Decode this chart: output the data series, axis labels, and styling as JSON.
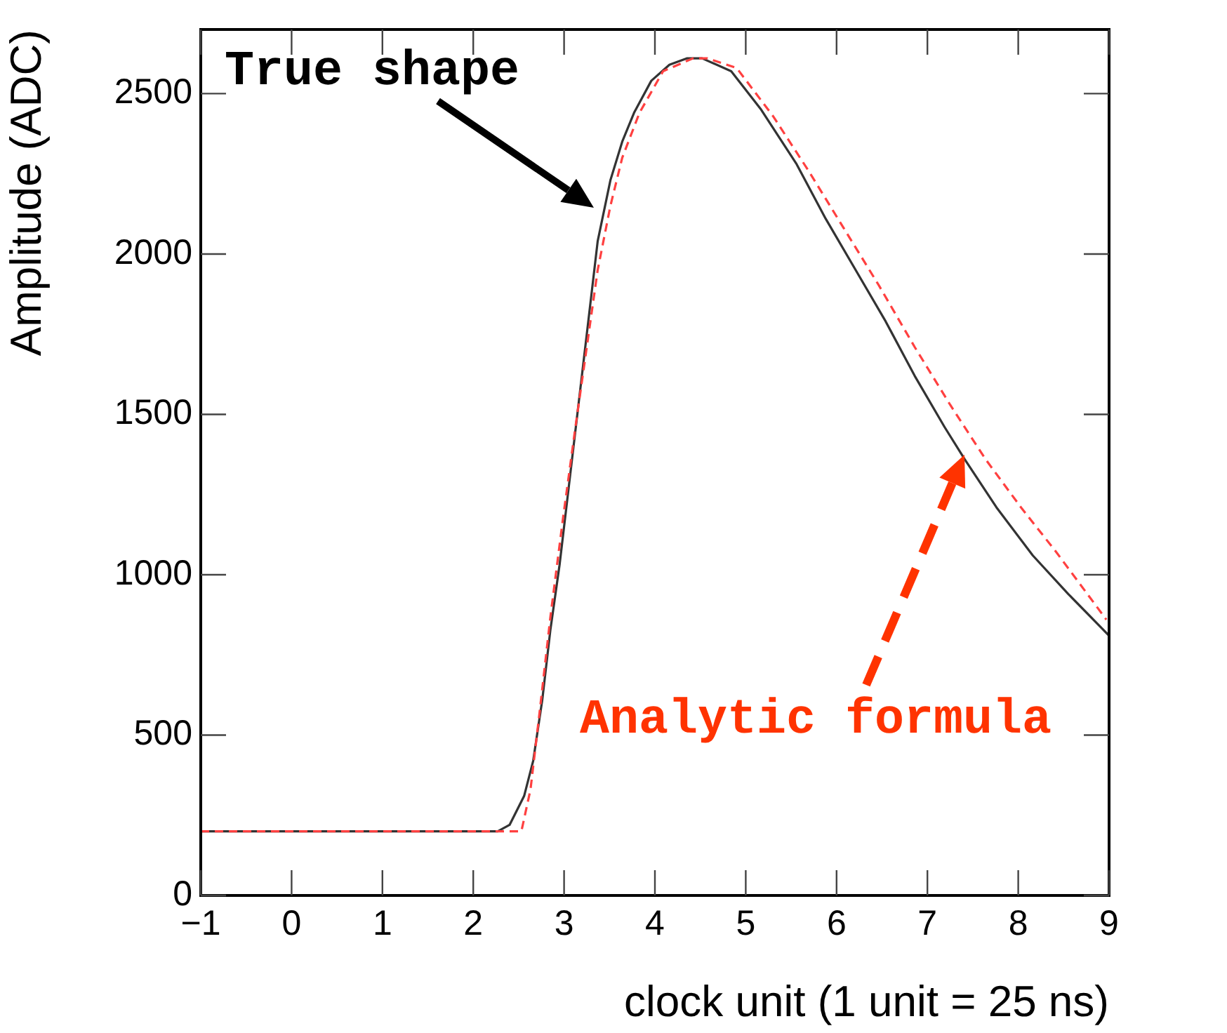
{
  "chart_data": {
    "type": "line",
    "xlabel": "clock unit (1 unit = 25 ns)",
    "ylabel": "Amplitude (ADC)",
    "xlim": [
      -1,
      9
    ],
    "ylim": [
      0,
      2700
    ],
    "xticks": [
      {
        "value": -1,
        "label": "−1"
      },
      0,
      1,
      2,
      3,
      4,
      5,
      6,
      7,
      8,
      9
    ],
    "yticks": [
      0,
      500,
      1000,
      1500,
      2000,
      2500
    ],
    "marker": "none",
    "series": [
      {
        "color": "#333333",
        "line_style": "solid",
        "x": [
          -1,
          2.27,
          2.4,
          2.56,
          2.66,
          2.76,
          2.85,
          2.95,
          3.05,
          3.15,
          3.25,
          3.37,
          3.51,
          3.64,
          3.77,
          3.96,
          4.16,
          4.35,
          4.52,
          4.84,
          5.17,
          5.56,
          5.88,
          6.21,
          6.54,
          6.86,
          7.19,
          7.41,
          7.76,
          8.16,
          8.55,
          9.0
        ],
        "values": [
          200,
          200,
          220,
          310,
          420,
          610,
          830,
          1030,
          1270,
          1510,
          1750,
          2040,
          2230,
          2350,
          2440,
          2540,
          2590,
          2610,
          2610,
          2570,
          2450,
          2280,
          2110,
          1950,
          1790,
          1620,
          1460,
          1360,
          1210,
          1060,
          940,
          810
        ]
      },
      {
        "color": "#ff4040",
        "line_style": "dashed",
        "x": [
          -1,
          2.53,
          2.63,
          2.73,
          2.85,
          2.99,
          3.12,
          3.25,
          3.37,
          3.51,
          3.64,
          3.83,
          4.09,
          4.42,
          4.58,
          4.9,
          5.3,
          5.69,
          6.08,
          6.47,
          6.86,
          7.25,
          7.64,
          8.03,
          8.42,
          8.97
        ],
        "values": [
          200,
          200,
          330,
          570,
          870,
          1180,
          1450,
          1710,
          1950,
          2150,
          2300,
          2440,
          2570,
          2610,
          2610,
          2580,
          2430,
          2260,
          2080,
          1900,
          1710,
          1530,
          1360,
          1210,
          1070,
          860
        ]
      }
    ],
    "annotations": [
      "True shape",
      "Analytic formula"
    ]
  }
}
